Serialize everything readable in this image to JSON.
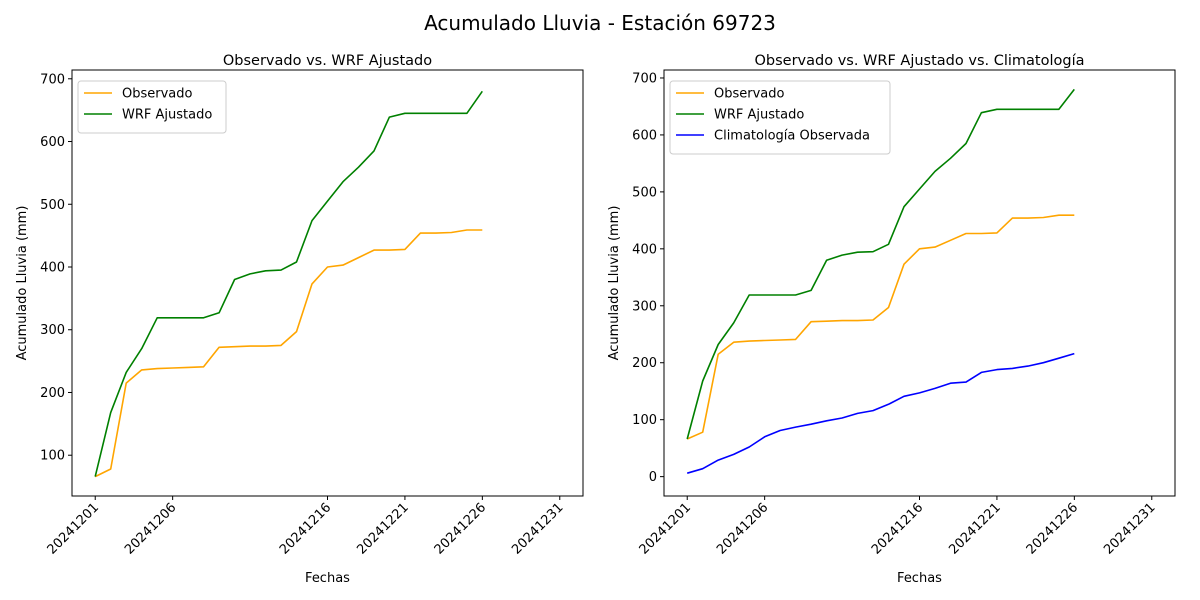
{
  "figure_title": "Acumulado Lluvia - Estación 69723",
  "colors": {
    "observado": "#ffa500",
    "wrf": "#008000",
    "clim": "#0000ff"
  },
  "chart_data": [
    {
      "type": "line",
      "title": "Observado vs. WRF Ajustado",
      "xlabel": "Fechas",
      "ylabel": "Acumulado Lluvia (mm)",
      "x": [
        "20241201",
        "20241202",
        "20241203",
        "20241204",
        "20241205",
        "20241206",
        "20241207",
        "20241208",
        "20241209",
        "20241210",
        "20241211",
        "20241212",
        "20241213",
        "20241214",
        "20241215",
        "20241216",
        "20241217",
        "20241218",
        "20241219",
        "20241220",
        "20241221",
        "20241222",
        "20241223",
        "20241224",
        "20241225",
        "20241226"
      ],
      "x_ticks": [
        "20241201",
        "20241206",
        "20241216",
        "20241221",
        "20241226",
        "20241231"
      ],
      "ylim": [
        35,
        714
      ],
      "y_ticks": [
        100,
        200,
        300,
        400,
        500,
        600,
        700
      ],
      "grid": false,
      "legend": "top-left",
      "series": [
        {
          "name": "Observado",
          "color": "#ffa500",
          "values": [
            66,
            78,
            215,
            236,
            238,
            239,
            240,
            241,
            272,
            273,
            274,
            274,
            275,
            297,
            373,
            400,
            403,
            415,
            427,
            427,
            428,
            454,
            454,
            455,
            459,
            459
          ]
        },
        {
          "name": "WRF Ajustado",
          "color": "#008000",
          "values": [
            66,
            168,
            232,
            270,
            319,
            319,
            319,
            319,
            327,
            380,
            389,
            394,
            395,
            408,
            474,
            505,
            536,
            559,
            585,
            639,
            645,
            645,
            645,
            645,
            645,
            680
          ]
        }
      ]
    },
    {
      "type": "line",
      "title": "Observado vs. WRF Ajustado vs. Climatología",
      "xlabel": "Fechas",
      "ylabel": "Acumulado Lluvia (mm)",
      "x": [
        "20241201",
        "20241202",
        "20241203",
        "20241204",
        "20241205",
        "20241206",
        "20241207",
        "20241208",
        "20241209",
        "20241210",
        "20241211",
        "20241212",
        "20241213",
        "20241214",
        "20241215",
        "20241216",
        "20241217",
        "20241218",
        "20241219",
        "20241220",
        "20241221",
        "20241222",
        "20241223",
        "20241224",
        "20241225",
        "20241226"
      ],
      "x_ticks": [
        "20241201",
        "20241206",
        "20241216",
        "20241221",
        "20241226",
        "20241231"
      ],
      "ylim": [
        -34,
        714
      ],
      "y_ticks": [
        0,
        100,
        200,
        300,
        400,
        500,
        600,
        700
      ],
      "grid": false,
      "legend": "top-left",
      "series": [
        {
          "name": "Observado",
          "color": "#ffa500",
          "values": [
            66,
            78,
            215,
            236,
            238,
            239,
            240,
            241,
            272,
            273,
            274,
            274,
            275,
            297,
            373,
            400,
            403,
            415,
            427,
            427,
            428,
            454,
            454,
            455,
            459,
            459
          ]
        },
        {
          "name": "WRF Ajustado",
          "color": "#008000",
          "values": [
            66,
            168,
            232,
            270,
            319,
            319,
            319,
            319,
            327,
            380,
            389,
            394,
            395,
            408,
            474,
            505,
            536,
            559,
            585,
            639,
            645,
            645,
            645,
            645,
            645,
            680
          ]
        },
        {
          "name": "Climatología Observada",
          "color": "#0000ff",
          "values": [
            6,
            14,
            29,
            39,
            52,
            70,
            81,
            87,
            92,
            98,
            103,
            111,
            116,
            127,
            141,
            147,
            155,
            164,
            166,
            183,
            188,
            190,
            194,
            200,
            208,
            216
          ]
        }
      ]
    }
  ]
}
